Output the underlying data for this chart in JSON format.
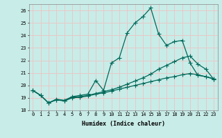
{
  "xlabel": "Humidex (Indice chaleur)",
  "bg_color": "#c8ece8",
  "grid_color": "#e8c8c8",
  "line_color": "#006858",
  "xlim": [
    -0.5,
    23.5
  ],
  "ylim": [
    18,
    26.5
  ],
  "xticks": [
    0,
    1,
    2,
    3,
    4,
    5,
    6,
    7,
    8,
    9,
    10,
    11,
    12,
    13,
    14,
    15,
    16,
    17,
    18,
    19,
    20,
    21,
    22,
    23
  ],
  "yticks": [
    18,
    19,
    20,
    21,
    22,
    23,
    24,
    25,
    26
  ],
  "line1_x": [
    0,
    1,
    2,
    3,
    4,
    5,
    6,
    7,
    8,
    9,
    10,
    11,
    12,
    13,
    14,
    15,
    16,
    17,
    18,
    19,
    20,
    21,
    22,
    23
  ],
  "line1_y": [
    19.6,
    19.2,
    18.6,
    18.9,
    18.8,
    19.1,
    19.2,
    19.3,
    20.4,
    19.6,
    21.8,
    22.2,
    24.2,
    25.0,
    25.5,
    26.2,
    24.1,
    23.2,
    23.5,
    23.6,
    21.8,
    20.8,
    20.7,
    20.5
  ],
  "line2_x": [
    0,
    1,
    2,
    3,
    4,
    5,
    6,
    7,
    8,
    9,
    10,
    11,
    12,
    13,
    14,
    15,
    16,
    17,
    18,
    19,
    20,
    21,
    22,
    23
  ],
  "line2_y": [
    19.6,
    19.2,
    18.6,
    18.85,
    18.8,
    19.05,
    19.1,
    19.2,
    19.35,
    19.5,
    19.65,
    19.85,
    20.1,
    20.35,
    20.6,
    20.9,
    21.3,
    21.6,
    21.9,
    22.2,
    22.35,
    21.7,
    21.3,
    20.5
  ],
  "line3_x": [
    0,
    1,
    2,
    3,
    4,
    5,
    6,
    7,
    8,
    9,
    10,
    11,
    12,
    13,
    14,
    15,
    16,
    17,
    18,
    19,
    20,
    21,
    22,
    23
  ],
  "line3_y": [
    19.6,
    19.2,
    18.6,
    18.85,
    18.75,
    19.0,
    19.05,
    19.15,
    19.3,
    19.4,
    19.55,
    19.7,
    19.85,
    20.0,
    20.15,
    20.3,
    20.45,
    20.6,
    20.7,
    20.85,
    20.95,
    20.85,
    20.7,
    20.55
  ]
}
